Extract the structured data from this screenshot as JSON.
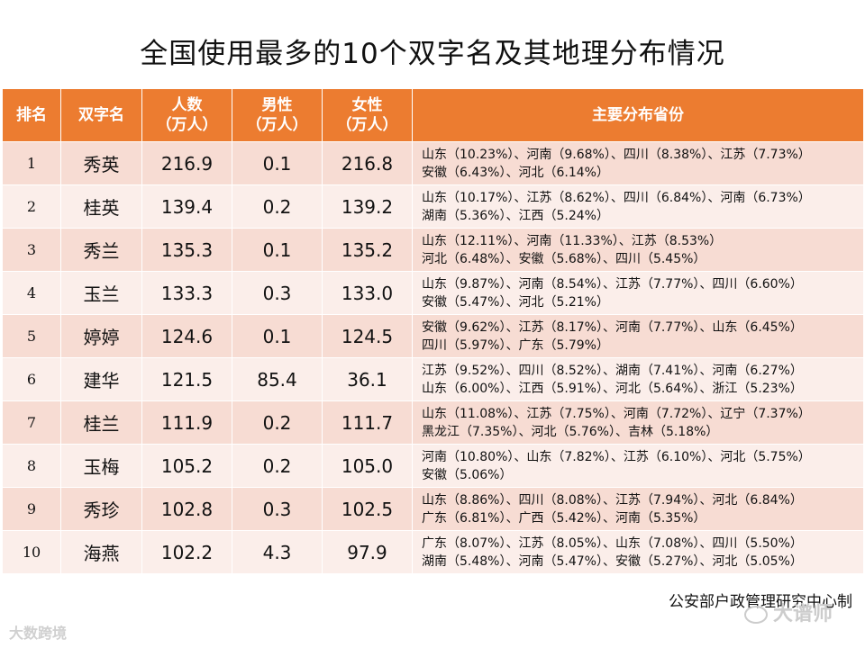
{
  "title": "全国使用最多的10个双字名及其地理分布情况",
  "headers": {
    "rank": "排名",
    "name": "双字名",
    "total": [
      "人数",
      "（万人）"
    ],
    "male": [
      "男性",
      "（万人）"
    ],
    "female": [
      "女性",
      "（万人）"
    ],
    "distribution": "主要分布省份"
  },
  "rows": [
    {
      "rank": "1",
      "name": "秀英",
      "total": "216.9",
      "male": "0.1",
      "female": "216.8",
      "dist": [
        "山东（10.23%）、河南（9.68%）、四川（8.38%）、江苏（7.73%）",
        "安徽（6.43%）、河北（6.14%）"
      ]
    },
    {
      "rank": "2",
      "name": "桂英",
      "total": "139.4",
      "male": "0.2",
      "female": "139.2",
      "dist": [
        "山东（10.17%）、江苏（8.62%）、四川（6.84%）、河南（6.73%）",
        "湖南（5.36%）、江西（5.24%）"
      ]
    },
    {
      "rank": "3",
      "name": "秀兰",
      "total": "135.3",
      "male": "0.1",
      "female": "135.2",
      "dist": [
        "山东（12.11%）、河南（11.33%）、江苏（8.53%）",
        "河北（6.48%）、安徽（5.68%）、四川（5.45%）"
      ]
    },
    {
      "rank": "4",
      "name": "玉兰",
      "total": "133.3",
      "male": "0.3",
      "female": "133.0",
      "dist": [
        "山东（9.87%）、河南（8.54%）、江苏（7.77%）、四川（6.60%）",
        "安徽（5.47%）、河北（5.21%）"
      ]
    },
    {
      "rank": "5",
      "name": "婷婷",
      "total": "124.6",
      "male": "0.1",
      "female": "124.5",
      "dist": [
        "安徽（9.62%）、江苏（8.17%）、河南（7.77%）、山东（6.45%）",
        "四川（5.97%）、广东（5.79%）"
      ]
    },
    {
      "rank": "6",
      "name": "建华",
      "total": "121.5",
      "male": "85.4",
      "female": "36.1",
      "dist": [
        "江苏（9.52%）、四川（8.52%）、湖南（7.41%）、河南（6.27%）",
        "山东（6.00%）、江西（5.91%）、河北（5.64%）、浙江（5.23%）"
      ]
    },
    {
      "rank": "7",
      "name": "桂兰",
      "total": "111.9",
      "male": "0.2",
      "female": "111.7",
      "dist": [
        "山东（11.08%）、江苏（7.75%）、河南（7.72%）、辽宁（7.37%）",
        "黑龙江（7.35%）、河北（5.76%）、吉林（5.18%）"
      ]
    },
    {
      "rank": "8",
      "name": "玉梅",
      "total": "105.2",
      "male": "0.2",
      "female": "105.0",
      "dist": [
        "河南（10.80%）、山东（7.82%）、江苏（6.10%）、河北（5.75%）",
        "安徽（5.06%）"
      ]
    },
    {
      "rank": "9",
      "name": "秀珍",
      "total": "102.8",
      "male": "0.3",
      "female": "102.5",
      "dist": [
        "山东（8.86%）、四川（8.08%）、江苏（7.94%）、河北（6.84%）",
        "广东（6.81%）、广西（5.42%）、河南（5.35%）"
      ]
    },
    {
      "rank": "10",
      "name": "海燕",
      "total": "102.2",
      "male": "4.3",
      "female": "97.9",
      "dist": [
        "广东（8.07%）、江苏（8.05%）、山东（7.08%）、四川（5.50%）",
        "湖南（5.48%）、河南（5.47%）、安徽（5.27%）、河北（5.05%）"
      ]
    }
  ],
  "source": "公安部户政管理研究中心制",
  "watermark_left": "大数跨境",
  "watermark_right": "大谱师",
  "colors": {
    "header_bg": "#ec7c30",
    "row_odd": "#f7dcd3",
    "row_even": "#fbeeea"
  }
}
